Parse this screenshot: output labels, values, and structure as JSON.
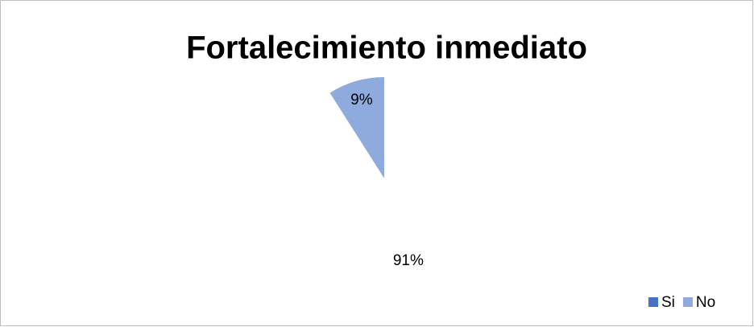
{
  "chart_data": {
    "type": "pie",
    "title": "Fortalecimiento inmediato",
    "categories": [
      "Si",
      "No"
    ],
    "values": [
      91,
      9
    ],
    "value_labels": [
      "91%",
      "9%"
    ],
    "colors": [
      "#4472c4",
      "#8faadc"
    ],
    "legend": "bottom-right"
  }
}
